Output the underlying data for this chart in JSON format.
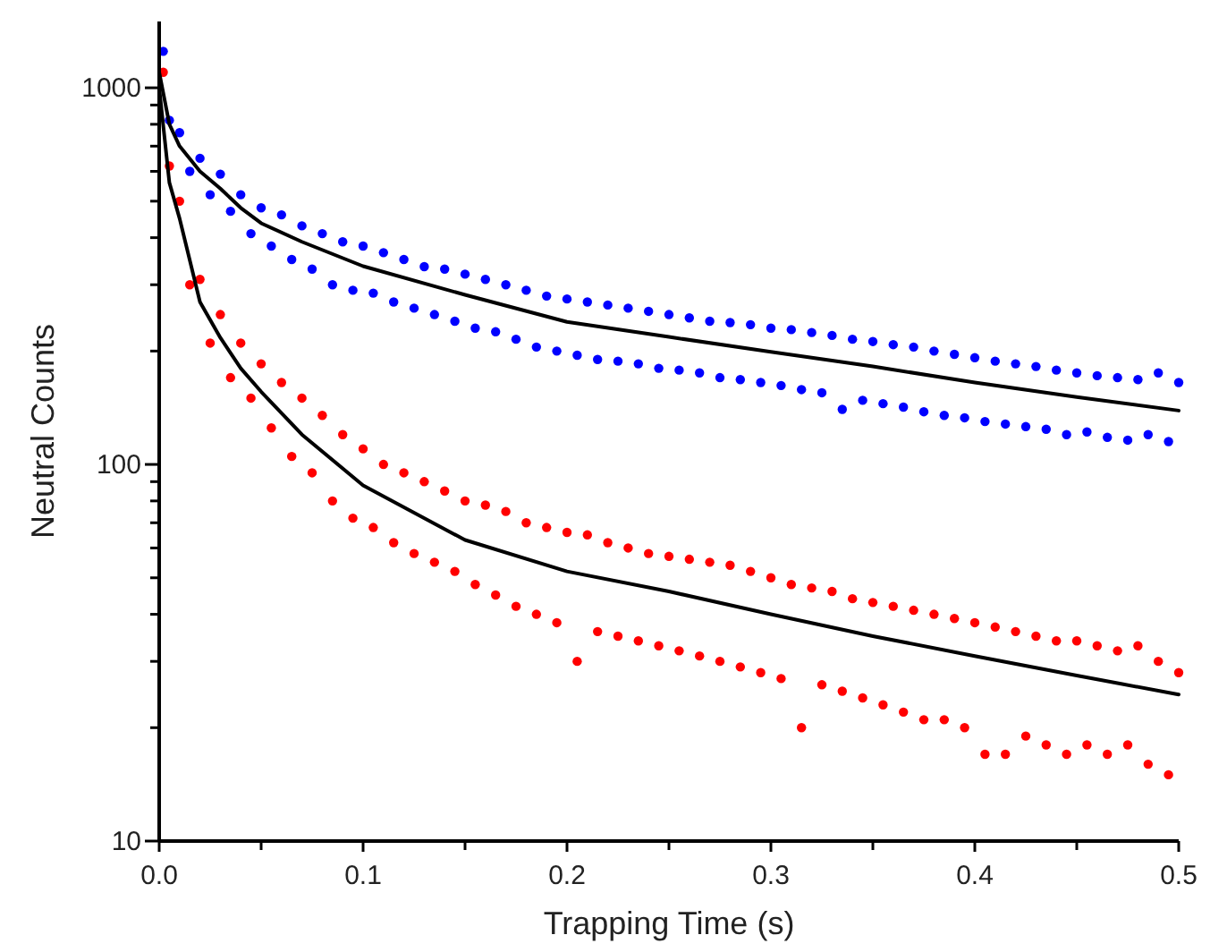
{
  "chart_data": {
    "type": "scatter",
    "xlabel": "Trapping Time (s)",
    "ylabel": "Neutral Counts",
    "log": "y",
    "grid": false,
    "marker": "circle",
    "xlim": [
      0,
      0.5
    ],
    "ylim": [
      10,
      1500
    ],
    "xticks": [
      {
        "value": 0,
        "label": "0.0"
      },
      {
        "value": 0.05,
        "label": null
      },
      {
        "value": 0.1,
        "label": "0.1"
      },
      {
        "value": 0.15,
        "label": null
      },
      {
        "value": 0.2,
        "label": "0.2"
      },
      {
        "value": 0.25,
        "label": null
      },
      {
        "value": 0.3,
        "label": "0.3"
      },
      {
        "value": 0.35,
        "label": null
      },
      {
        "value": 0.4,
        "label": "0.4"
      },
      {
        "value": 0.45,
        "label": null
      },
      {
        "value": 0.5,
        "label": "0.5"
      }
    ],
    "yticks": [
      10,
      {
        "value": 20,
        "label": null
      },
      {
        "value": 30,
        "label": null
      },
      {
        "value": 40,
        "label": null
      },
      {
        "value": 50,
        "label": null
      },
      {
        "value": 60,
        "label": null
      },
      {
        "value": 70,
        "label": null
      },
      {
        "value": 80,
        "label": null
      },
      {
        "value": 90,
        "label": null
      },
      100,
      {
        "value": 200,
        "label": null
      },
      {
        "value": 300,
        "label": null
      },
      {
        "value": 400,
        "label": null
      },
      {
        "value": 500,
        "label": null
      },
      {
        "value": 600,
        "label": null
      },
      {
        "value": 700,
        "label": null
      },
      {
        "value": 800,
        "label": null
      },
      {
        "value": 900,
        "label": null
      },
      1000
    ],
    "series": [
      {
        "color": "#0000ff",
        "x": [
          0.002,
          0.005,
          0.01,
          0.015,
          0.02,
          0.025,
          0.03,
          0.035,
          0.04,
          0.045,
          0.05,
          0.055,
          0.06,
          0.065,
          0.07,
          0.075,
          0.08,
          0.085,
          0.09,
          0.095,
          0.1,
          0.105,
          0.11,
          0.115,
          0.12,
          0.125,
          0.13,
          0.135,
          0.14,
          0.145,
          0.15,
          0.155,
          0.16,
          0.165,
          0.17,
          0.175,
          0.18,
          0.185,
          0.19,
          0.195,
          0.2,
          0.205,
          0.21,
          0.215,
          0.22,
          0.225,
          0.23,
          0.235,
          0.24,
          0.245,
          0.25,
          0.255,
          0.26,
          0.265,
          0.27,
          0.275,
          0.28,
          0.285,
          0.29,
          0.295,
          0.3,
          0.305,
          0.31,
          0.315,
          0.32,
          0.325,
          0.33,
          0.335,
          0.34,
          0.345,
          0.35,
          0.355,
          0.36,
          0.365,
          0.37,
          0.375,
          0.38,
          0.385,
          0.39,
          0.395,
          0.4,
          0.405,
          0.41,
          0.415,
          0.42,
          0.425,
          0.43,
          0.435,
          0.44,
          0.445,
          0.45,
          0.455,
          0.46,
          0.465,
          0.47,
          0.475,
          0.48,
          0.485,
          0.49,
          0.495,
          0.5
        ],
        "values": [
          1250,
          820,
          760,
          600,
          650,
          520,
          590,
          470,
          520,
          410,
          480,
          380,
          460,
          350,
          430,
          330,
          410,
          300,
          390,
          290,
          380,
          285,
          365,
          270,
          350,
          260,
          335,
          250,
          330,
          240,
          320,
          230,
          310,
          225,
          300,
          215,
          290,
          205,
          280,
          200,
          275,
          195,
          270,
          190,
          265,
          188,
          260,
          185,
          255,
          180,
          250,
          178,
          245,
          175,
          240,
          170,
          238,
          168,
          235,
          165,
          230,
          162,
          228,
          158,
          224,
          155,
          220,
          140,
          215,
          148,
          212,
          145,
          208,
          142,
          205,
          138,
          200,
          135,
          196,
          133,
          192,
          130,
          188,
          128,
          185,
          126,
          182,
          124,
          178,
          120,
          175,
          122,
          172,
          118,
          170,
          116,
          168,
          120,
          175,
          115,
          165
        ]
      },
      {
        "color": "#ff0000",
        "x": [
          0.002,
          0.005,
          0.01,
          0.015,
          0.02,
          0.025,
          0.03,
          0.035,
          0.04,
          0.045,
          0.05,
          0.055,
          0.06,
          0.065,
          0.07,
          0.075,
          0.08,
          0.085,
          0.09,
          0.095,
          0.1,
          0.105,
          0.11,
          0.115,
          0.12,
          0.125,
          0.13,
          0.135,
          0.14,
          0.145,
          0.15,
          0.155,
          0.16,
          0.165,
          0.17,
          0.175,
          0.18,
          0.185,
          0.19,
          0.195,
          0.2,
          0.205,
          0.21,
          0.215,
          0.22,
          0.225,
          0.23,
          0.235,
          0.24,
          0.245,
          0.25,
          0.255,
          0.26,
          0.265,
          0.27,
          0.275,
          0.28,
          0.285,
          0.29,
          0.295,
          0.3,
          0.305,
          0.31,
          0.315,
          0.32,
          0.325,
          0.33,
          0.335,
          0.34,
          0.345,
          0.35,
          0.355,
          0.36,
          0.365,
          0.37,
          0.375,
          0.38,
          0.385,
          0.39,
          0.395,
          0.4,
          0.405,
          0.41,
          0.415,
          0.42,
          0.425,
          0.43,
          0.435,
          0.44,
          0.445,
          0.45,
          0.455,
          0.46,
          0.465,
          0.47,
          0.475,
          0.48,
          0.485,
          0.49,
          0.495,
          0.5
        ],
        "values": [
          1100,
          620,
          500,
          300,
          310,
          210,
          250,
          170,
          210,
          150,
          185,
          125,
          165,
          105,
          150,
          95,
          135,
          80,
          120,
          72,
          110,
          68,
          100,
          62,
          95,
          58,
          90,
          55,
          85,
          52,
          80,
          48,
          78,
          45,
          75,
          42,
          70,
          40,
          68,
          38,
          66,
          30,
          65,
          36,
          62,
          35,
          60,
          34,
          58,
          33,
          57,
          32,
          56,
          31,
          55,
          30,
          54,
          29,
          52,
          28,
          50,
          27,
          48,
          20,
          47,
          26,
          46,
          25,
          44,
          24,
          43,
          23,
          42,
          22,
          41,
          21,
          40,
          21,
          39,
          20,
          38,
          17,
          37,
          17,
          36,
          19,
          35,
          18,
          34,
          17,
          34,
          18,
          33,
          17,
          32,
          18,
          33,
          16,
          30,
          15,
          28
        ]
      },
      {
        "type": "line",
        "marker": "none",
        "color": "#000000",
        "x": [
          0,
          0.005,
          0.01,
          0.02,
          0.03,
          0.04,
          0.05,
          0.07,
          0.1,
          0.15,
          0.2,
          0.25,
          0.3,
          0.35,
          0.4,
          0.45,
          0.5
        ],
        "values": [
          1100,
          800,
          700,
          600,
          540,
          480,
          437,
          390,
          336,
          282,
          239,
          218,
          199,
          182,
          165,
          151,
          139
        ]
      },
      {
        "type": "line",
        "marker": "none",
        "color": "#000000",
        "x": [
          0,
          0.005,
          0.01,
          0.02,
          0.03,
          0.04,
          0.05,
          0.07,
          0.1,
          0.15,
          0.2,
          0.25,
          0.3,
          0.35,
          0.4,
          0.45,
          0.5
        ],
        "values": [
          1000,
          560,
          450,
          270,
          217,
          180,
          156,
          120,
          88,
          63,
          52,
          46,
          40,
          35,
          31,
          27.5,
          24.5
        ]
      }
    ]
  }
}
